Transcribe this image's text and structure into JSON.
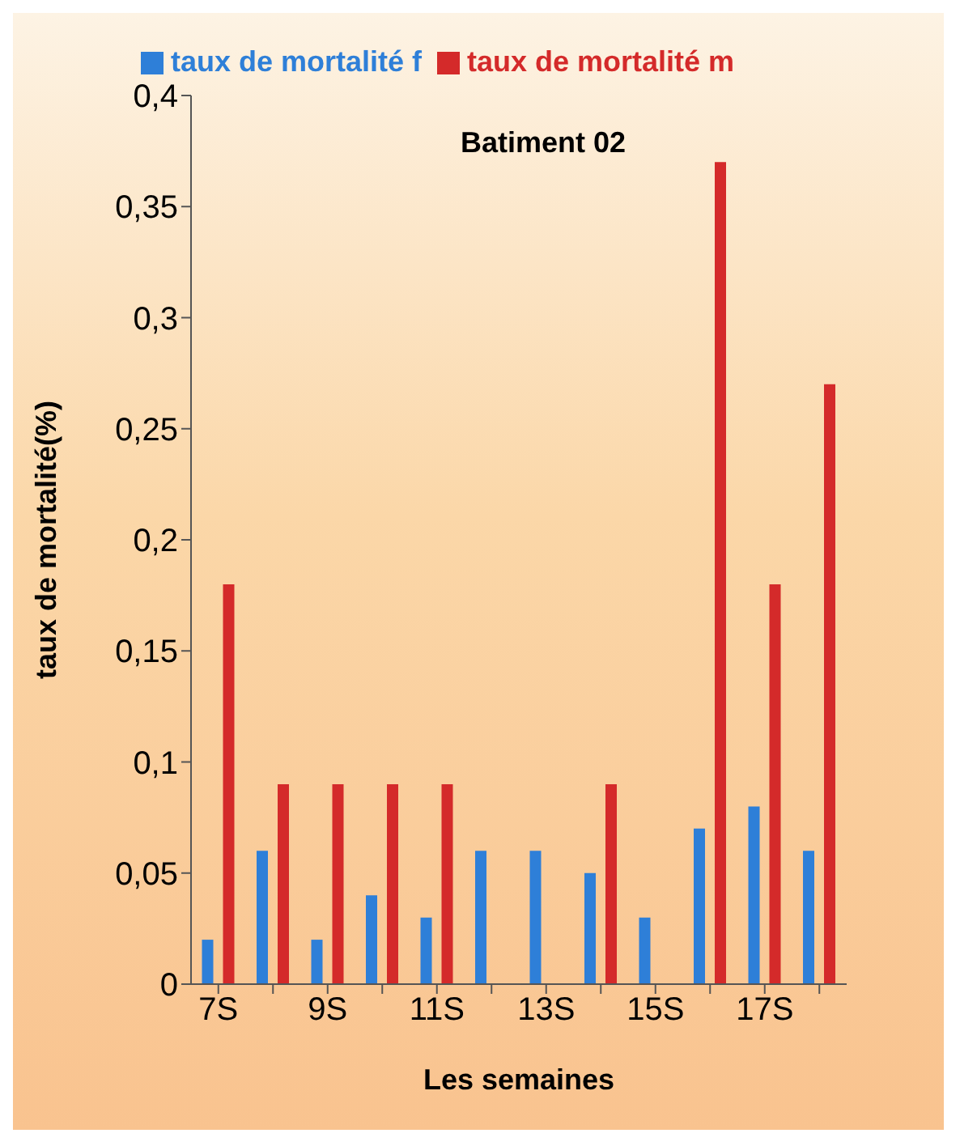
{
  "chart_data": {
    "type": "bar",
    "title": "Batiment 02",
    "xlabel": "Les semaines",
    "ylabel": "taux de mortalité(%)",
    "categories": [
      "7S",
      null,
      "9S",
      null,
      "11S",
      null,
      "13S",
      null,
      "15S",
      null,
      "17S",
      null
    ],
    "series": [
      {
        "name": "taux de mortalité f",
        "color": "#2e7fd8",
        "values": [
          0.02,
          0.06,
          0.02,
          0.04,
          0.03,
          0.06,
          0.06,
          0.05,
          0.03,
          0.07,
          0.08,
          0.06
        ]
      },
      {
        "name": "taux de mortalité m",
        "color": "#d42a2a",
        "values": [
          0.18,
          0.09,
          0.09,
          0.09,
          0.09,
          0,
          0,
          0.09,
          0,
          0.37,
          0.18,
          0.27
        ]
      }
    ],
    "ylim": [
      0,
      0.4
    ],
    "yticks": [
      0,
      {
        "value": 0.05,
        "label": "0,05"
      },
      {
        "value": 0.1,
        "label": "0,1"
      },
      {
        "value": 0.15,
        "label": "0,15"
      },
      {
        "value": 0.2,
        "label": "0,2"
      },
      {
        "value": 0.25,
        "label": "0,25"
      },
      {
        "value": 0.3,
        "label": "0,3"
      },
      {
        "value": 0.35,
        "label": "0,35"
      },
      {
        "value": 0.4,
        "label": "0,4"
      }
    ],
    "grid": false,
    "legend": "top"
  }
}
